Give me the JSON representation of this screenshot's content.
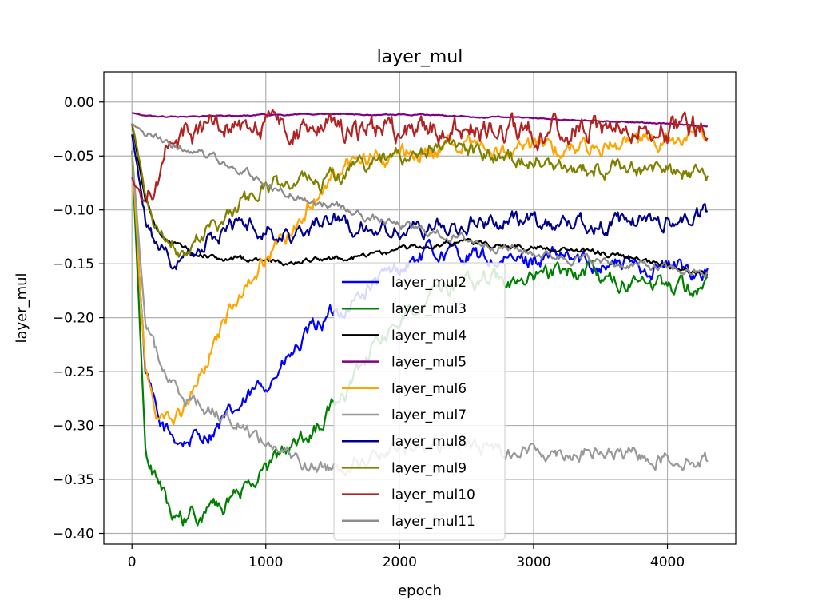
{
  "chart_data": {
    "type": "line",
    "title": "layer_mul",
    "xlabel": "epoch",
    "ylabel": "layer_mul",
    "xlim": [
      -210,
      4510
    ],
    "ylim": [
      -0.41,
      0.028
    ],
    "xticks": [
      0,
      1000,
      2000,
      3000,
      4000
    ],
    "xtick_labels": [
      "0",
      "1000",
      "2000",
      "3000",
      "4000"
    ],
    "yticks": [
      0.0,
      -0.05,
      -0.1,
      -0.15,
      -0.2,
      -0.25,
      -0.3,
      -0.35,
      -0.4
    ],
    "ytick_labels": [
      "0.00",
      "−0.05",
      "−0.10",
      "−0.15",
      "−0.20",
      "−0.25",
      "−0.30",
      "−0.35",
      "−0.40"
    ],
    "grid": true,
    "legend_position": "lower-center",
    "x": [
      0,
      100,
      200,
      300,
      400,
      500,
      600,
      700,
      800,
      1000,
      1200,
      1400,
      1600,
      1800,
      2000,
      2200,
      2400,
      2600,
      2800,
      3000,
      3200,
      3400,
      3600,
      3800,
      4000,
      4200,
      4300
    ],
    "series": [
      {
        "name": "layer_mul2",
        "color": "#0000ff",
        "noise": 0.006,
        "values": [
          -0.045,
          -0.25,
          -0.3,
          -0.31,
          -0.315,
          -0.31,
          -0.305,
          -0.295,
          -0.285,
          -0.26,
          -0.235,
          -0.205,
          -0.19,
          -0.17,
          -0.155,
          -0.14,
          -0.14,
          -0.145,
          -0.15,
          -0.145,
          -0.145,
          -0.148,
          -0.15,
          -0.152,
          -0.153,
          -0.155,
          -0.158
        ]
      },
      {
        "name": "layer_mul3",
        "color": "#008000",
        "noise": 0.006,
        "values": [
          -0.045,
          -0.32,
          -0.36,
          -0.38,
          -0.388,
          -0.382,
          -0.38,
          -0.375,
          -0.365,
          -0.34,
          -0.32,
          -0.3,
          -0.27,
          -0.23,
          -0.2,
          -0.18,
          -0.175,
          -0.17,
          -0.165,
          -0.162,
          -0.16,
          -0.158,
          -0.165,
          -0.168,
          -0.17,
          -0.172,
          -0.174
        ]
      },
      {
        "name": "layer_mul4",
        "color": "#000000",
        "noise": 0.002,
        "values": [
          -0.02,
          -0.09,
          -0.12,
          -0.13,
          -0.138,
          -0.14,
          -0.143,
          -0.145,
          -0.146,
          -0.147,
          -0.148,
          -0.146,
          -0.144,
          -0.142,
          -0.138,
          -0.133,
          -0.13,
          -0.131,
          -0.133,
          -0.134,
          -0.136,
          -0.138,
          -0.142,
          -0.148,
          -0.153,
          -0.158,
          -0.16
        ]
      },
      {
        "name": "layer_mul5",
        "color": "#800080",
        "noise": 0.0004,
        "values": [
          -0.01,
          -0.013,
          -0.014,
          -0.014,
          -0.014,
          -0.014,
          -0.013,
          -0.013,
          -0.013,
          -0.012,
          -0.012,
          -0.011,
          -0.011,
          -0.012,
          -0.012,
          -0.012,
          -0.013,
          -0.014,
          -0.014,
          -0.015,
          -0.016,
          -0.017,
          -0.018,
          -0.019,
          -0.02,
          -0.022,
          -0.023
        ]
      },
      {
        "name": "layer_mul6",
        "color": "#ffa500",
        "noise": 0.006,
        "values": [
          -0.045,
          -0.25,
          -0.295,
          -0.3,
          -0.285,
          -0.255,
          -0.225,
          -0.2,
          -0.175,
          -0.145,
          -0.115,
          -0.08,
          -0.06,
          -0.05,
          -0.048,
          -0.045,
          -0.04,
          -0.042,
          -0.045,
          -0.045,
          -0.042,
          -0.04,
          -0.04,
          -0.038,
          -0.037,
          -0.036,
          -0.038
        ]
      },
      {
        "name": "layer_mul7",
        "color": "#999999",
        "noise": 0.005,
        "values": [
          -0.045,
          -0.2,
          -0.24,
          -0.262,
          -0.272,
          -0.28,
          -0.285,
          -0.29,
          -0.298,
          -0.315,
          -0.33,
          -0.34,
          -0.335,
          -0.33,
          -0.325,
          -0.32,
          -0.318,
          -0.32,
          -0.322,
          -0.323,
          -0.324,
          -0.325,
          -0.327,
          -0.328,
          -0.33,
          -0.332,
          -0.333
        ]
      },
      {
        "name": "layer_mul8",
        "color": "#00008b",
        "noise": 0.006,
        "values": [
          -0.03,
          -0.11,
          -0.135,
          -0.145,
          -0.135,
          -0.13,
          -0.125,
          -0.12,
          -0.115,
          -0.115,
          -0.125,
          -0.11,
          -0.115,
          -0.118,
          -0.12,
          -0.115,
          -0.115,
          -0.11,
          -0.11,
          -0.11,
          -0.112,
          -0.112,
          -0.115,
          -0.11,
          -0.11,
          -0.108,
          -0.105
        ]
      },
      {
        "name": "layer_mul9",
        "color": "#808000",
        "noise": 0.006,
        "values": [
          -0.02,
          -0.08,
          -0.12,
          -0.13,
          -0.137,
          -0.125,
          -0.115,
          -0.105,
          -0.095,
          -0.08,
          -0.078,
          -0.075,
          -0.065,
          -0.055,
          -0.05,
          -0.045,
          -0.04,
          -0.048,
          -0.052,
          -0.055,
          -0.058,
          -0.06,
          -0.062,
          -0.063,
          -0.062,
          -0.068,
          -0.066
        ]
      },
      {
        "name": "layer_mul10",
        "color": "#b22222",
        "noise": 0.009,
        "values": [
          -0.07,
          -0.1,
          -0.06,
          -0.028,
          -0.025,
          -0.028,
          -0.026,
          -0.025,
          -0.025,
          -0.026,
          -0.025,
          -0.024,
          -0.025,
          -0.026,
          -0.025,
          -0.026,
          -0.025,
          -0.024,
          -0.025,
          -0.026,
          -0.025,
          -0.025,
          -0.024,
          -0.024,
          -0.025,
          -0.024,
          -0.03
        ]
      },
      {
        "name": "layer_mul11",
        "color": "#8c8c8c",
        "noise": 0.003,
        "values": [
          -0.02,
          -0.03,
          -0.035,
          -0.04,
          -0.045,
          -0.048,
          -0.052,
          -0.057,
          -0.062,
          -0.075,
          -0.085,
          -0.093,
          -0.1,
          -0.108,
          -0.115,
          -0.12,
          -0.125,
          -0.13,
          -0.135,
          -0.14,
          -0.143,
          -0.146,
          -0.15,
          -0.152,
          -0.155,
          -0.158,
          -0.16
        ]
      }
    ]
  }
}
